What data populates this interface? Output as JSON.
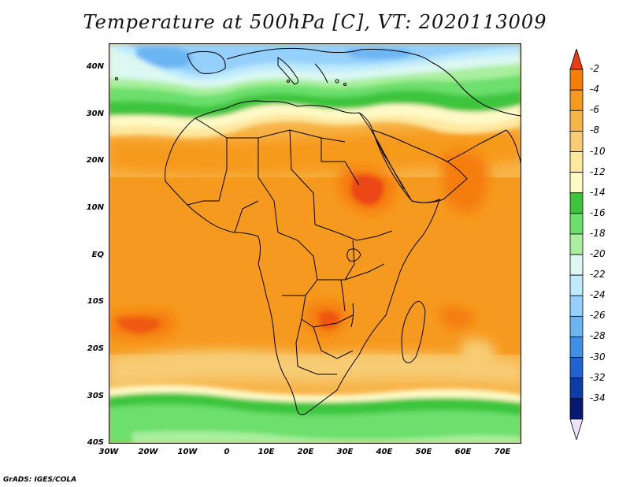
{
  "title": "Temperature at 500hPa [C], VT: 2020113009",
  "credit": "GrADS: IGES/COLA",
  "map": {
    "lon_range": [
      -30,
      75
    ],
    "lat_range": [
      -40,
      45
    ],
    "lat_labels": [
      "40N",
      "30N",
      "20N",
      "10N",
      "EQ",
      "10S",
      "20S",
      "30S",
      "40S"
    ],
    "lon_labels": [
      "30W",
      "20W",
      "10W",
      "0",
      "10E",
      "20E",
      "30E",
      "40E",
      "50E",
      "60E",
      "70E"
    ],
    "field": "500hPa temperature (C)",
    "features": [
      "northern cold trough over Mediterranean (-24 to -18 C)",
      "tropical belt -6 to -4 C",
      "warm cores -4 to -2 C over Sudan/Ethiopia and Angola/Zambia",
      "southern cold band near 30-40S (-16 to -12 C)"
    ]
  },
  "colorbar": {
    "labels": [
      "-2",
      "-4",
      "-6",
      "-8",
      "-10",
      "-12",
      "-14",
      "-16",
      "-18",
      "-20",
      "-22",
      "-24",
      "-26",
      "-28",
      "-30",
      "-32",
      "-34"
    ],
    "colors": [
      "#ea3d14",
      "#f57d0a",
      "#f69a1f",
      "#f7b449",
      "#f7cc74",
      "#fde8a0",
      "#fff9c6",
      "#3cc53c",
      "#6cdf6c",
      "#a9ef9f",
      "#dbf8f2",
      "#bdeafd",
      "#94d0fb",
      "#6cb5f3",
      "#3f8fe5",
      "#1d64cf",
      "#0c3ca6",
      "#071970",
      "#ebe4fb"
    ]
  }
}
